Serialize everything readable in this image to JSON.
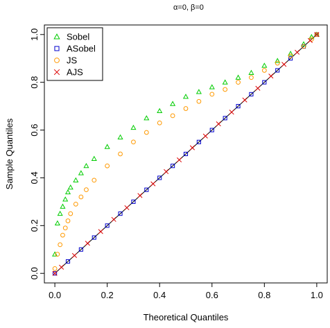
{
  "chart_data": {
    "type": "scatter",
    "title": "α=0, β=0",
    "xlabel": "Theoretical Quantiles",
    "ylabel": "Sample Quantiles",
    "xlim": [
      -0.04,
      1.04
    ],
    "ylim": [
      -0.04,
      1.04
    ],
    "xticks": [
      "0.0",
      "0.2",
      "0.4",
      "0.6",
      "0.8",
      "1.0"
    ],
    "yticks": [
      "0.0",
      "0.2",
      "0.4",
      "0.6",
      "0.8",
      "1.0"
    ],
    "grid": false,
    "legend_position": "top-left",
    "reference_line": {
      "from": [
        0,
        0
      ],
      "to": [
        1,
        1
      ],
      "color": "#000000"
    },
    "series": [
      {
        "name": "Sobel",
        "marker": "triangle",
        "color": "#00cc00",
        "points": [
          [
            0.0,
            0.08
          ],
          [
            0.01,
            0.21
          ],
          [
            0.02,
            0.25
          ],
          [
            0.03,
            0.28
          ],
          [
            0.04,
            0.31
          ],
          [
            0.05,
            0.34
          ],
          [
            0.06,
            0.36
          ],
          [
            0.08,
            0.39
          ],
          [
            0.1,
            0.42
          ],
          [
            0.12,
            0.45
          ],
          [
            0.15,
            0.48
          ],
          [
            0.2,
            0.53
          ],
          [
            0.25,
            0.57
          ],
          [
            0.3,
            0.61
          ],
          [
            0.35,
            0.65
          ],
          [
            0.4,
            0.68
          ],
          [
            0.45,
            0.71
          ],
          [
            0.5,
            0.74
          ],
          [
            0.55,
            0.76
          ],
          [
            0.6,
            0.78
          ],
          [
            0.65,
            0.8
          ],
          [
            0.7,
            0.82
          ],
          [
            0.75,
            0.84
          ],
          [
            0.8,
            0.87
          ],
          [
            0.85,
            0.89
          ],
          [
            0.9,
            0.92
          ],
          [
            0.95,
            0.96
          ],
          [
            0.98,
            0.99
          ],
          [
            1.0,
            1.0
          ]
        ]
      },
      {
        "name": "ASobel",
        "marker": "square",
        "color": "#0000cc",
        "points": [
          [
            0.0,
            0.0
          ],
          [
            0.05,
            0.05
          ],
          [
            0.1,
            0.1
          ],
          [
            0.15,
            0.15
          ],
          [
            0.2,
            0.2
          ],
          [
            0.25,
            0.25
          ],
          [
            0.3,
            0.3
          ],
          [
            0.35,
            0.35
          ],
          [
            0.4,
            0.4
          ],
          [
            0.45,
            0.45
          ],
          [
            0.5,
            0.5
          ],
          [
            0.55,
            0.55
          ],
          [
            0.6,
            0.6
          ],
          [
            0.65,
            0.65
          ],
          [
            0.7,
            0.7
          ],
          [
            0.75,
            0.75
          ],
          [
            0.8,
            0.8
          ],
          [
            0.85,
            0.85
          ],
          [
            0.9,
            0.9
          ],
          [
            0.95,
            0.95
          ],
          [
            1.0,
            1.0
          ]
        ]
      },
      {
        "name": "JS",
        "marker": "circle",
        "color": "#ff9900",
        "points": [
          [
            0.0,
            0.02
          ],
          [
            0.01,
            0.08
          ],
          [
            0.02,
            0.12
          ],
          [
            0.03,
            0.16
          ],
          [
            0.04,
            0.19
          ],
          [
            0.05,
            0.22
          ],
          [
            0.06,
            0.25
          ],
          [
            0.08,
            0.29
          ],
          [
            0.1,
            0.32
          ],
          [
            0.12,
            0.35
          ],
          [
            0.15,
            0.39
          ],
          [
            0.2,
            0.45
          ],
          [
            0.25,
            0.5
          ],
          [
            0.3,
            0.55
          ],
          [
            0.35,
            0.59
          ],
          [
            0.4,
            0.63
          ],
          [
            0.45,
            0.66
          ],
          [
            0.5,
            0.69
          ],
          [
            0.55,
            0.72
          ],
          [
            0.6,
            0.75
          ],
          [
            0.65,
            0.77
          ],
          [
            0.7,
            0.8
          ],
          [
            0.75,
            0.82
          ],
          [
            0.8,
            0.85
          ],
          [
            0.85,
            0.88
          ],
          [
            0.9,
            0.91
          ],
          [
            0.95,
            0.95
          ],
          [
            0.98,
            0.98
          ],
          [
            1.0,
            1.0
          ]
        ]
      },
      {
        "name": "AJS",
        "marker": "cross",
        "color": "#dd0000",
        "points": [
          [
            0.0,
            0.0
          ],
          [
            0.025,
            0.026
          ],
          [
            0.075,
            0.075
          ],
          [
            0.125,
            0.126
          ],
          [
            0.175,
            0.175
          ],
          [
            0.225,
            0.226
          ],
          [
            0.275,
            0.275
          ],
          [
            0.325,
            0.326
          ],
          [
            0.375,
            0.375
          ],
          [
            0.425,
            0.426
          ],
          [
            0.475,
            0.475
          ],
          [
            0.525,
            0.526
          ],
          [
            0.575,
            0.575
          ],
          [
            0.625,
            0.626
          ],
          [
            0.675,
            0.675
          ],
          [
            0.725,
            0.726
          ],
          [
            0.775,
            0.775
          ],
          [
            0.825,
            0.826
          ],
          [
            0.875,
            0.875
          ],
          [
            0.925,
            0.926
          ],
          [
            0.975,
            0.975
          ],
          [
            1.0,
            1.0
          ]
        ]
      }
    ]
  }
}
